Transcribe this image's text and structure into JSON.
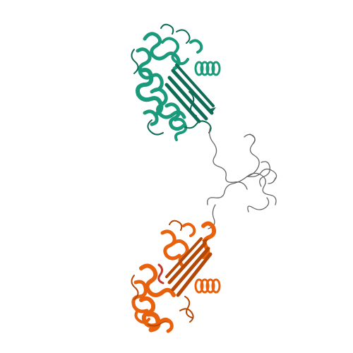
{
  "viewer": {
    "background": "#ffffff",
    "structure": "protein-dimer-cartoon"
  },
  "chains": [
    {
      "id": "A",
      "color": "#1a9a7a",
      "color_dark": "#0f6b55"
    },
    {
      "id": "B",
      "color": "#e8620e",
      "color_dark": "#b34705"
    }
  ],
  "linker": {
    "color": "#666666"
  }
}
